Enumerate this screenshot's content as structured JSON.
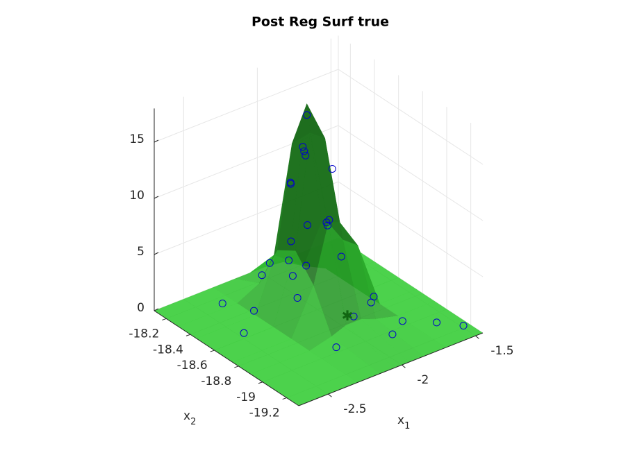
{
  "chart_data": {
    "type": "surface3d",
    "title": "Post Reg Surf true",
    "xlabel": "x",
    "xlabel_sub": "1",
    "ylabel": "x",
    "ylabel_sub": "2",
    "xlim": [
      -2.7,
      -1.45
    ],
    "ylim": [
      -19.3,
      -18.1
    ],
    "zlim": [
      0,
      18
    ],
    "xticks": [
      -2.5,
      -2,
      -1.5
    ],
    "yticks": [
      -18.2,
      -18.4,
      -18.6,
      -18.8,
      -19,
      -19.2
    ],
    "zticks": [
      0,
      5,
      10,
      15
    ],
    "grid": true,
    "surface": {
      "color": "#33cc33",
      "x1": [
        -2.7,
        -2.3,
        -2.15,
        -2.05,
        -1.95,
        -1.85,
        -1.7,
        -1.45
      ],
      "x2": [
        -19.3,
        -18.9,
        -18.75,
        -18.6,
        -18.45,
        -18.3,
        -18.1
      ],
      "z": [
        [
          0,
          0,
          0,
          0,
          0,
          0,
          0,
          0
        ],
        [
          0,
          0,
          0.5,
          1,
          1,
          0.5,
          0,
          0
        ],
        [
          0,
          0,
          4,
          9,
          7,
          6,
          0,
          0
        ],
        [
          0,
          0,
          6,
          16,
          15,
          7,
          0,
          0
        ],
        [
          0,
          0,
          5,
          14,
          17,
          6,
          0,
          0
        ],
        [
          0,
          0,
          1,
          3,
          2,
          1,
          0,
          0
        ],
        [
          0,
          0,
          0,
          0,
          0,
          0,
          0,
          0
        ]
      ]
    },
    "scatter": {
      "color": "#0000cc",
      "x1": [
        -2.1,
        -2.05,
        -2.0,
        -1.95,
        -1.9,
        -2.15,
        -2.2,
        -2.1,
        -1.98,
        -1.88,
        -2.25,
        -2.3,
        -2.02,
        -1.92,
        -1.85,
        -2.12,
        -2.18,
        -1.95,
        -2.35,
        -2.4,
        -1.8,
        -1.75,
        -1.6,
        -1.5,
        -2.5,
        -2.2,
        -1.9,
        -2.0,
        -1.7,
        -2.05
      ],
      "x2": [
        -18.6,
        -18.55,
        -18.5,
        -18.45,
        -18.6,
        -18.7,
        -18.75,
        -18.5,
        -18.65,
        -18.55,
        -18.7,
        -18.8,
        -18.4,
        -18.7,
        -18.5,
        -18.35,
        -18.6,
        -18.3,
        -18.5,
        -18.3,
        -18.8,
        -19.0,
        -19.1,
        -19.2,
        -18.6,
        -19.0,
        -19.1,
        -18.9,
        -18.7,
        -18.2
      ],
      "z": [
        15,
        14,
        13,
        16,
        12,
        9,
        6,
        11,
        8,
        7,
        5,
        4,
        10,
        5,
        6,
        3,
        7,
        2,
        1,
        0.5,
        1,
        0.5,
        0.3,
        0.2,
        0.5,
        0.5,
        0.8,
        1.5,
        0.3,
        0.5
      ]
    },
    "star": {
      "color": "#116611",
      "x1": -1.92,
      "x2": -18.75,
      "z": 0
    }
  }
}
